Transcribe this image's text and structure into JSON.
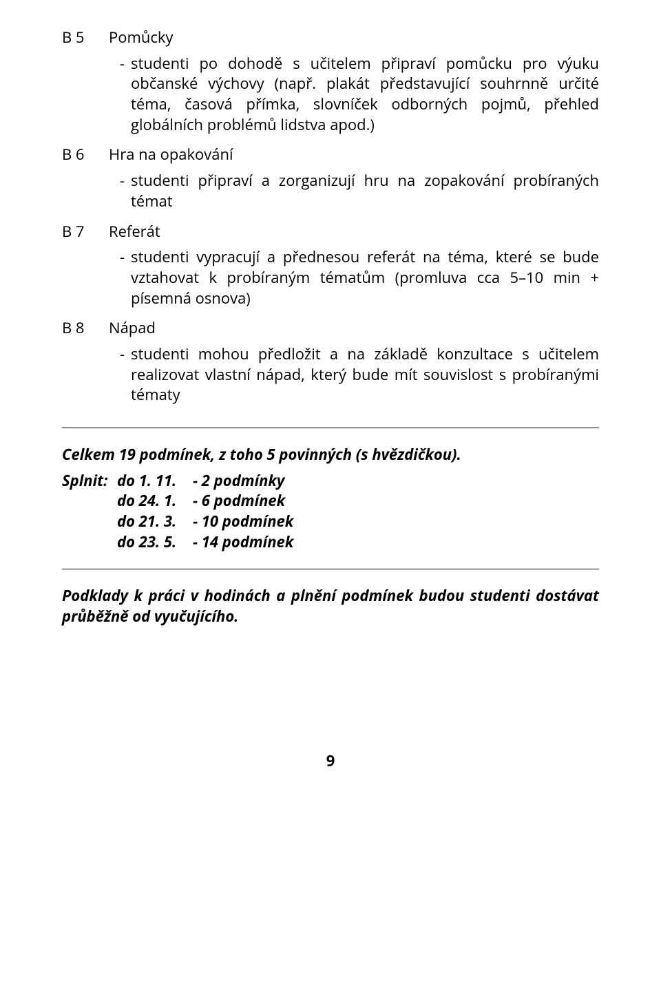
{
  "items": [
    {
      "code": "B 5",
      "title": "Pomůcky",
      "subs": [
        "studenti po dohodě s učitelem připraví pomůcku pro výuku občanské výchovy (např. plakát představující souhrnně určité téma, časová přímka, slovníček odborných pojmů, přehled globálních problémů lidstva apod.)"
      ]
    },
    {
      "code": "B 6",
      "title": "Hra na opakování",
      "subs": [
        "studenti připraví a zorganizují hru na zopakování probíraných témat"
      ]
    },
    {
      "code": "B 7",
      "title": "Referát",
      "subs": [
        "studenti vypracují a přednesou referát na téma, které se bude vztahovat k probíraným tématům (promluva cca 5–10 min + písemná osnova)"
      ]
    },
    {
      "code": "B 8",
      "title": "Nápad",
      "subs": [
        "studenti mohou předložit a na základě konzultace s učitelem realizovat vlastní nápad, který bude mít souvislost s probíranými tématy"
      ]
    }
  ],
  "summary": "Celkem 19 podmínek, z toho 5 povinných (s hvězdičkou).",
  "splnit_label": "Splnit:",
  "splnit": [
    {
      "date": "do 1. 11.",
      "cond": "- 2 podmínky"
    },
    {
      "date": "do 24. 1.",
      "cond": "- 6 podmínek"
    },
    {
      "date": "do 21. 3.",
      "cond": "- 10 podmínek"
    },
    {
      "date": "do 23. 5.",
      "cond": "- 14 podmínek"
    }
  ],
  "note": "Podklady k práci v hodinách a plnění podmínek budou studenti dostávat průběžně od vyučujícího.",
  "page_number": "9"
}
